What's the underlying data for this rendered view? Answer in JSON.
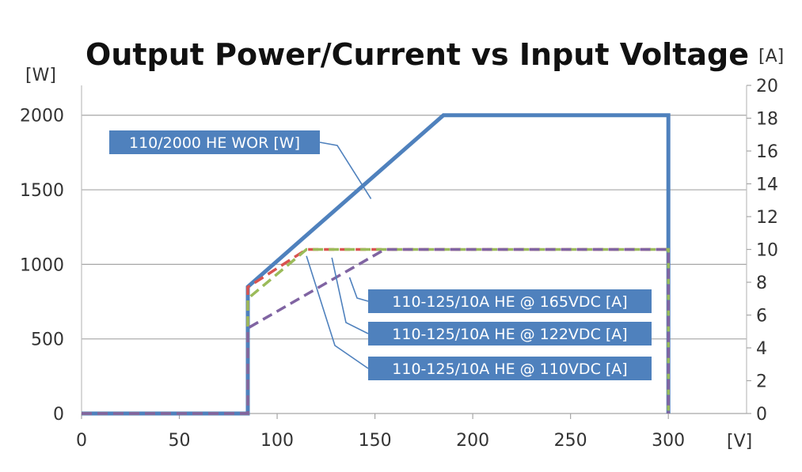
{
  "chart_data": {
    "type": "line",
    "title": "Output Power/Current  vs Input Voltage",
    "xlabel": "[V]",
    "ylabel_left": "[W]",
    "ylabel_right": "[A]",
    "xlim": [
      0,
      340
    ],
    "ylim_left": [
      0,
      2200
    ],
    "ylim_right": [
      0,
      20
    ],
    "x_ticks": [
      0,
      50,
      100,
      150,
      200,
      250,
      300
    ],
    "y_left_ticks": [
      0,
      500,
      1000,
      1500,
      2000
    ],
    "y_right_ticks": [
      0,
      2,
      4,
      6,
      8,
      10,
      12,
      14,
      16,
      18,
      20
    ],
    "grid": "horizontal",
    "series": [
      {
        "name": "110/2000 HE WOR [W]",
        "axis": "left",
        "color": "#4F81BD",
        "dash": "solid",
        "points": [
          [
            0,
            0
          ],
          [
            85,
            0
          ],
          [
            85,
            850
          ],
          [
            185,
            2000
          ],
          [
            300,
            2000
          ],
          [
            300,
            0
          ]
        ]
      },
      {
        "name": "110-125/10A HE @ 122VDC [A]",
        "axis": "right",
        "color": "#D9534F",
        "dash": "dashed",
        "points": [
          [
            0,
            0
          ],
          [
            85,
            0
          ],
          [
            85,
            7.7
          ],
          [
            115,
            10
          ],
          [
            300,
            10
          ],
          [
            300,
            0
          ]
        ]
      },
      {
        "name": "110-125/10A HE @ 110VDC [A]",
        "axis": "right",
        "color": "#9BBB59",
        "dash": "dashed",
        "points": [
          [
            0,
            0
          ],
          [
            85,
            0
          ],
          [
            85,
            7
          ],
          [
            115,
            10
          ],
          [
            300,
            10
          ],
          [
            300,
            0
          ]
        ]
      },
      {
        "name": "110-125/10A HE @ 165VDC [A]",
        "axis": "right",
        "color": "#8064A2",
        "dash": "dashed",
        "points": [
          [
            0,
            0
          ],
          [
            85,
            0
          ],
          [
            85,
            5.2
          ],
          [
            155,
            10
          ],
          [
            300,
            10
          ],
          [
            300,
            0
          ]
        ]
      }
    ],
    "annotations": [
      {
        "text": "110/2000 HE WOR [W]",
        "target": [
          148,
          1440
        ]
      },
      {
        "text": "110-125/10A HE @ 165VDC [A]",
        "target": [
          137,
          8.3
        ]
      },
      {
        "text": "110-125/10A HE @ 122VDC [A]",
        "target": [
          128,
          9.5
        ]
      },
      {
        "text": "110-125/10A HE @ 110VDC [A]",
        "target": [
          115,
          9.6
        ]
      }
    ]
  }
}
